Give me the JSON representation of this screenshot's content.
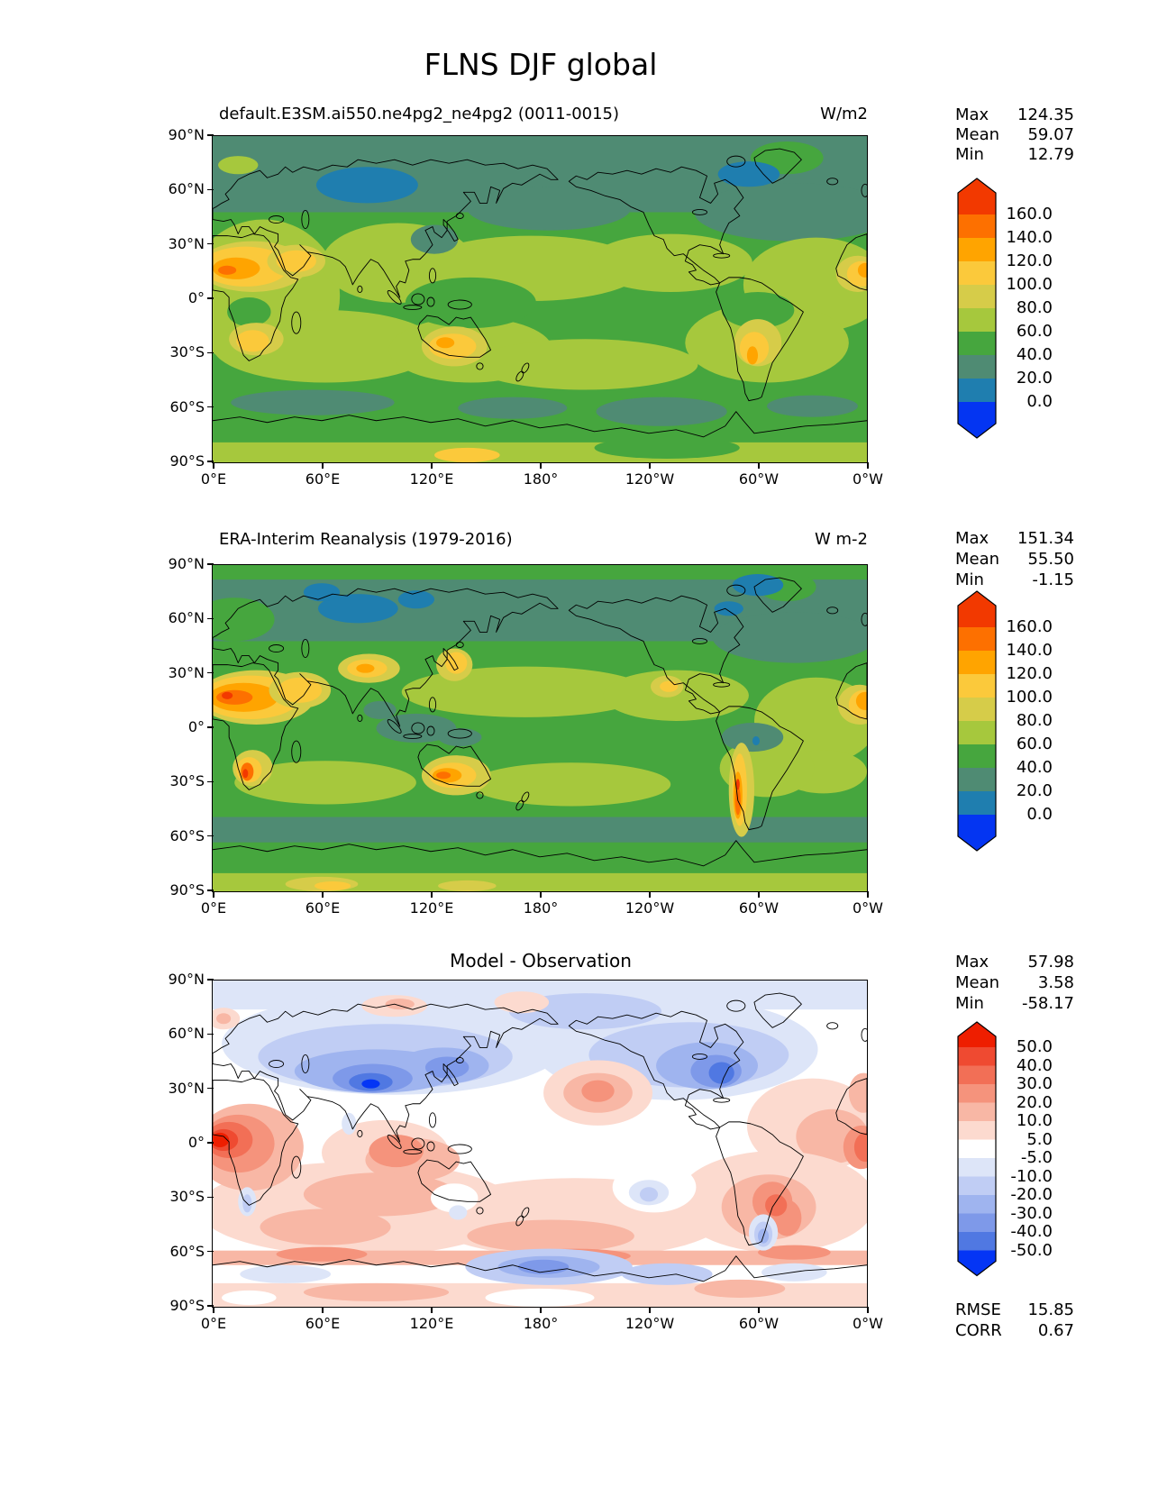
{
  "figure": {
    "title": "FLNS DJF global"
  },
  "axes": {
    "lat_ticks": [
      "90°N",
      "60°N",
      "30°N",
      "0°",
      "30°S",
      "60°S",
      "90°S"
    ],
    "lon_ticks": [
      "0°E",
      "60°E",
      "120°E",
      "180°",
      "120°W",
      "60°W",
      "0°W"
    ]
  },
  "panels": [
    {
      "title": "default.E3SM.ai550.ne4pg2_ne4pg2 (0011-0015)",
      "units": "W/m2",
      "stats": [
        {
          "label": "Max",
          "value": "124.35"
        },
        {
          "label": "Mean",
          "value": "59.07"
        },
        {
          "label": "Min",
          "value": "12.79"
        }
      ],
      "colorbar": {
        "tick_labels": [
          "160.0",
          "140.0",
          "120.0",
          "100.0",
          "80.0",
          "60.0",
          "40.0",
          "20.0",
          "0.0"
        ],
        "colors": [
          "#f23900",
          "#fd7000",
          "#ffa400",
          "#fbc93b",
          "#d6cc49",
          "#a6c83d",
          "#46a63e",
          "#4f8b73",
          "#1f7eaf",
          "#0435f2"
        ]
      }
    },
    {
      "title": "ERA-Interim Reanalysis (1979-2016)",
      "units": "W m-2",
      "stats": [
        {
          "label": "Max",
          "value": "151.34"
        },
        {
          "label": "Mean",
          "value": "55.50"
        },
        {
          "label": "Min",
          "value": "-1.15"
        }
      ],
      "colorbar": {
        "tick_labels": [
          "160.0",
          "140.0",
          "120.0",
          "100.0",
          "80.0",
          "60.0",
          "40.0",
          "20.0",
          "0.0"
        ],
        "colors": [
          "#f23900",
          "#fd7000",
          "#ffa400",
          "#fbc93b",
          "#d6cc49",
          "#a6c83d",
          "#46a63e",
          "#4f8b73",
          "#1f7eaf",
          "#0435f2"
        ]
      }
    },
    {
      "title": "Model - Observation",
      "units": "",
      "stats": [
        {
          "label": "Max",
          "value": "57.98"
        },
        {
          "label": "Mean",
          "value": "3.58"
        },
        {
          "label": "Min",
          "value": "-58.17"
        }
      ],
      "colorbar": {
        "tick_labels": [
          "50.0",
          "40.0",
          "30.0",
          "20.0",
          "10.0",
          "5.0",
          "-5.0",
          "-10.0",
          "-20.0",
          "-30.0",
          "-40.0",
          "-50.0"
        ],
        "colors": [
          "#ee1e00",
          "#ef4a31",
          "#f26f56",
          "#f5937c",
          "#f8b7a5",
          "#fcdacf",
          "#ffffff",
          "#dde5f8",
          "#c0cdf4",
          "#9fb4ef",
          "#7e99e9",
          "#5078e2",
          "#0435f5"
        ]
      },
      "metrics": [
        {
          "label": "RMSE",
          "value": "15.85"
        },
        {
          "label": "CORR",
          "value": "0.67"
        }
      ]
    }
  ],
  "chart_data": [
    {
      "type": "heatmap",
      "subtype": "filled-contour-map",
      "variable": "FLNS",
      "season": "DJF",
      "region": "global",
      "title": "default.E3SM.ai550.ne4pg2_ne4pg2 (0011-0015)",
      "units": "W/m2",
      "stats": {
        "max": 124.35,
        "mean": 59.07,
        "min": 12.79
      },
      "levels": [
        0,
        20,
        40,
        60,
        80,
        100,
        120,
        140,
        160
      ],
      "extend": "both",
      "lon_range": [
        0,
        360
      ],
      "lat_range": [
        -90,
        90
      ],
      "projection": "equirectangular, Pacific-centered (0E at left)",
      "notable_features": [
        "teal band (20-40) across high northern latitudes",
        "blue patches (0-20) over Siberia ~60N and northern Canada",
        "yellow-orange maxima (100-140) over Sahara/Arabia, southern Africa, Australia and subtropical South America",
        "yellow-green (60-80) through tropics and subtropical oceans",
        "teal patches (20-40) near 55-60S, yellow-green over Antarctic interior"
      ]
    },
    {
      "type": "heatmap",
      "subtype": "filled-contour-map",
      "variable": "FLNS",
      "season": "DJF",
      "region": "global",
      "title": "ERA-Interim Reanalysis (1979-2016)",
      "units": "W m-2",
      "stats": {
        "max": 151.34,
        "mean": 55.5,
        "min": -1.15
      },
      "levels": [
        0,
        20,
        40,
        60,
        80,
        100,
        120,
        140,
        160
      ],
      "extend": "both",
      "lon_range": [
        0,
        360
      ],
      "lat_range": [
        -90,
        90
      ],
      "projection": "equirectangular, Pacific-centered (0E at left)",
      "notable_features": [
        "strong orange maximum (120-160) over Sahara; orange spots on Tibetan Plateau, southern Africa, central Australia and along the Andes",
        "blue patches (0-20) over Siberia and Arctic coasts",
        "teal (20-40) over maritime-continent seas and Amazon",
        "continuous teal band (20-40) around Southern Ocean 45-60S"
      ]
    },
    {
      "type": "heatmap",
      "subtype": "filled-contour-difference-map",
      "variable": "FLNS bias",
      "title": "Model - Observation",
      "units": "W/m2",
      "stats": {
        "max": 57.98,
        "mean": 3.58,
        "min": -58.17
      },
      "rmse": 15.85,
      "corr": 0.67,
      "levels": [
        -50,
        -40,
        -30,
        -20,
        -10,
        -5,
        5,
        10,
        20,
        30,
        40,
        50
      ],
      "extend": "both",
      "lon_range": [
        0,
        360
      ],
      "lat_range": [
        -90,
        90
      ],
      "projection": "equirectangular, Pacific-centered (0E at left)",
      "notable_features": [
        "blue negative band across 30-60N with deep blue cores over Tibet/central Asia and eastern North America",
        "strong red positive bias over equatorial West Africa",
        "red/pink positive band across the southern subtropics, Brazil and the Atlantic",
        "red patch in central North Pacific near 30N",
        "blue negative band along the Antarctic coast near 180"
      ]
    }
  ]
}
